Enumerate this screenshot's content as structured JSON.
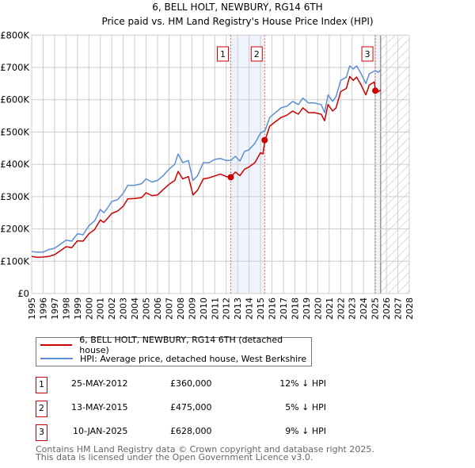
{
  "title": "6, BELL HOLT, NEWBURY, RG14 6TH",
  "subtitle": "Price paid vs. HM Land Registry's House Price Index (HPI)",
  "colors": {
    "property": "#cc0000",
    "hpi": "#5b8fd4",
    "shade": "#eef3fc",
    "marker_border": "#cc0000"
  },
  "chart_data": {
    "type": "line",
    "title": "Price paid vs. HM Land Registry's House Price Index (HPI)",
    "xlim": [
      1995,
      2028
    ],
    "ylim": [
      0,
      800000
    ],
    "x_ticks": [
      "1995",
      "1996",
      "1997",
      "1998",
      "1999",
      "2000",
      "2001",
      "2002",
      "2003",
      "2004",
      "2005",
      "2006",
      "2007",
      "2008",
      "2009",
      "2010",
      "2011",
      "2012",
      "2013",
      "2014",
      "2015",
      "2016",
      "2017",
      "2018",
      "2019",
      "2020",
      "2021",
      "2022",
      "2023",
      "2024",
      "2025",
      "2026",
      "2027",
      "2028"
    ],
    "y_ticks": [
      {
        "value": 0,
        "label": "£0"
      },
      {
        "value": 100000,
        "label": "£100K"
      },
      {
        "value": 200000,
        "label": "£200K"
      },
      {
        "value": 300000,
        "label": "£300K"
      },
      {
        "value": 400000,
        "label": "£400K"
      },
      {
        "value": 500000,
        "label": "£500K"
      },
      {
        "value": 600000,
        "label": "£600K"
      },
      {
        "value": 700000,
        "label": "£700K"
      },
      {
        "value": 800000,
        "label": "£800K"
      }
    ],
    "grid": true,
    "forecast_hatch_from": 2025.5,
    "series": [
      {
        "name": "HPI: Average price, detached house, West Berkshire",
        "color": "#5b8fd4",
        "x": [
          1995,
          1995.5,
          1996,
          1996.5,
          1997,
          1997.5,
          1998,
          1998.5,
          1999,
          1999.5,
          2000,
          2000.5,
          2001,
          2001.3,
          2001.7,
          2002,
          2002.5,
          2003,
          2003.4,
          2004,
          2004.6,
          2005,
          2005.5,
          2006,
          2006.5,
          2007,
          2007.5,
          2007.8,
          2008.2,
          2008.7,
          2009.1,
          2009.5,
          2010,
          2010.5,
          2011,
          2011.5,
          2012,
          2012.4,
          2012.8,
          2013.2,
          2013.6,
          2014,
          2014.5,
          2015,
          2015.4,
          2015.8,
          2016.3,
          2016.8,
          2017.3,
          2017.8,
          2018.3,
          2018.7,
          2019.2,
          2019.7,
          2020.3,
          2020.6,
          2020.9,
          2021.3,
          2021.6,
          2022,
          2022.5,
          2022.8,
          2023.1,
          2023.4,
          2023.8,
          2024.2,
          2024.5,
          2025,
          2025.3,
          2025.5
        ],
        "y": [
          130000,
          128000,
          128000,
          136000,
          140000,
          152000,
          165000,
          162000,
          185000,
          182000,
          210000,
          225000,
          260000,
          250000,
          268000,
          285000,
          290000,
          310000,
          335000,
          335000,
          340000,
          355000,
          345000,
          350000,
          365000,
          385000,
          400000,
          432000,
          405000,
          412000,
          350000,
          365000,
          405000,
          405000,
          415000,
          418000,
          412000,
          412000,
          425000,
          410000,
          440000,
          445000,
          465000,
          497000,
          505000,
          545000,
          560000,
          575000,
          580000,
          595000,
          585000,
          605000,
          590000,
          590000,
          585000,
          560000,
          615000,
          595000,
          610000,
          660000,
          670000,
          705000,
          695000,
          705000,
          680000,
          650000,
          680000,
          690000,
          685000,
          692000
        ]
      },
      {
        "name": "6, BELL HOLT, NEWBURY, RG14 6TH (detached house)",
        "color": "#cc0000",
        "x": [
          1995,
          1995.5,
          1996,
          1996.5,
          1997,
          1997.5,
          1998,
          1998.5,
          1999,
          1999.5,
          2000,
          2000.5,
          2001,
          2001.3,
          2001.7,
          2002,
          2002.5,
          2003,
          2003.4,
          2004,
          2004.6,
          2005,
          2005.5,
          2006,
          2006.5,
          2007,
          2007.5,
          2007.8,
          2008.2,
          2008.7,
          2009.1,
          2009.5,
          2010,
          2010.5,
          2011,
          2011.5,
          2012,
          2012.4,
          2012.8,
          2013.2,
          2013.6,
          2014,
          2014.5,
          2015,
          2015.2,
          2015.4,
          2015.8,
          2016.3,
          2016.8,
          2017.3,
          2017.8,
          2018.3,
          2018.7,
          2019.2,
          2019.7,
          2020.3,
          2020.6,
          2020.9,
          2021.3,
          2021.6,
          2022,
          2022.5,
          2022.8,
          2023.1,
          2023.4,
          2023.8,
          2024.2,
          2024.5,
          2024.95,
          2025.03,
          2025.3,
          2025.5
        ],
        "y": [
          115000,
          112000,
          113000,
          115000,
          120000,
          132000,
          145000,
          142000,
          163000,
          162000,
          185000,
          198000,
          228000,
          220000,
          235000,
          248000,
          255000,
          270000,
          293000,
          294000,
          297000,
          312000,
          303000,
          305000,
          322000,
          338000,
          350000,
          378000,
          355000,
          362000,
          305000,
          320000,
          355000,
          358000,
          364000,
          370000,
          362000,
          360000,
          376000,
          365000,
          385000,
          392000,
          405000,
          436000,
          432000,
          475000,
          518000,
          532000,
          545000,
          552000,
          565000,
          555000,
          575000,
          560000,
          560000,
          555000,
          535000,
          585000,
          565000,
          575000,
          625000,
          635000,
          672000,
          660000,
          670000,
          645000,
          615000,
          645000,
          655000,
          628000,
          625000,
          630000
        ]
      }
    ],
    "sales": [
      {
        "label": "1",
        "x": 2012.4,
        "y": 360000,
        "date": "25-MAY-2012",
        "price": "£360,000",
        "hpi_diff": "12% ↓ HPI"
      },
      {
        "label": "2",
        "x": 2015.36,
        "y": 475000,
        "date": "13-MAY-2015",
        "price": "£475,000",
        "hpi_diff": "5% ↓ HPI"
      },
      {
        "label": "3",
        "x": 2025.03,
        "y": 628000,
        "date": "10-JAN-2025",
        "price": "£628,000",
        "hpi_diff": "9% ↓ HPI"
      }
    ]
  },
  "legend": {
    "property": "6, BELL HOLT, NEWBURY, RG14 6TH (detached house)",
    "hpi": "HPI: Average price, detached house, West Berkshire"
  },
  "footer": {
    "line1": "Contains HM Land Registry data © Crown copyright and database right 2025.",
    "line2": "This data is licensed under the Open Government Licence v3.0."
  }
}
